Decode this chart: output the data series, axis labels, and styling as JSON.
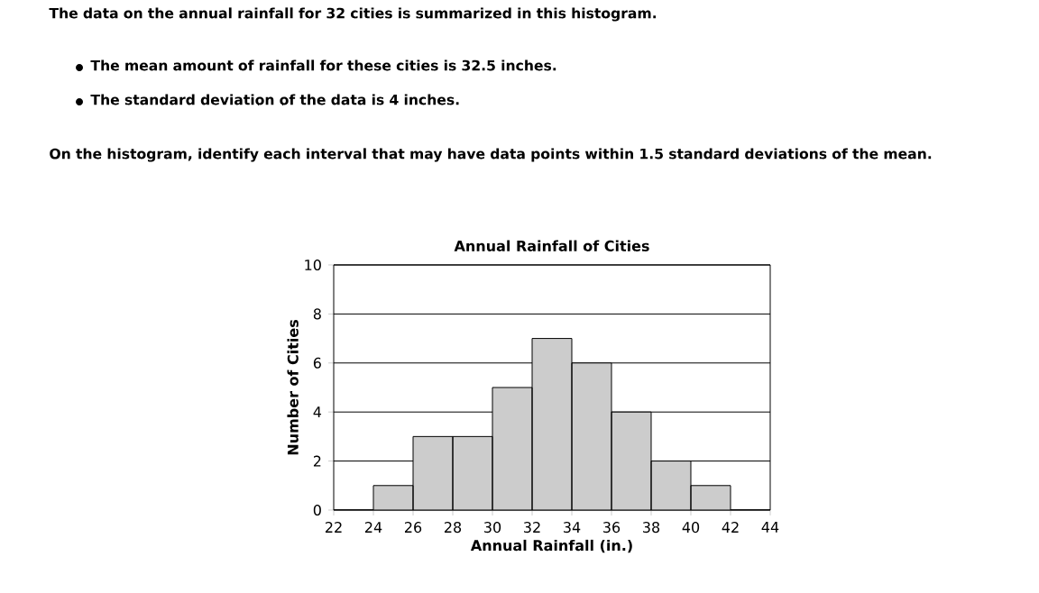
{
  "chart_data": {
    "type": "histogram",
    "title": "Annual Rainfall of Cities",
    "xlabel": "Annual Rainfall (in.)",
    "ylabel": "Number of Cities",
    "bins": [
      22,
      24,
      26,
      28,
      30,
      32,
      34,
      36,
      38,
      40,
      42,
      44
    ],
    "values": [
      0,
      1,
      3,
      3,
      5,
      7,
      6,
      4,
      2,
      1,
      0
    ],
    "color": "#cccccc",
    "xlim": [
      22,
      44
    ],
    "xticks": [
      22,
      24,
      26,
      28,
      30,
      32,
      34,
      36,
      38,
      40,
      42,
      44
    ],
    "ylim": [
      0,
      10
    ],
    "yticks": [
      0,
      2,
      4,
      6,
      8,
      10
    ],
    "grid": "y",
    "annotations": [
      "The data on the annual rainfall for 32 cities is summarized in this histogram.",
      "The mean amount of rainfall for these cities is 32.5 inches.",
      "The standard deviation of the data is 4 inches.",
      "On the histogram, identify each interval that may have data points within 1.5 standard deviations of the mean."
    ]
  }
}
